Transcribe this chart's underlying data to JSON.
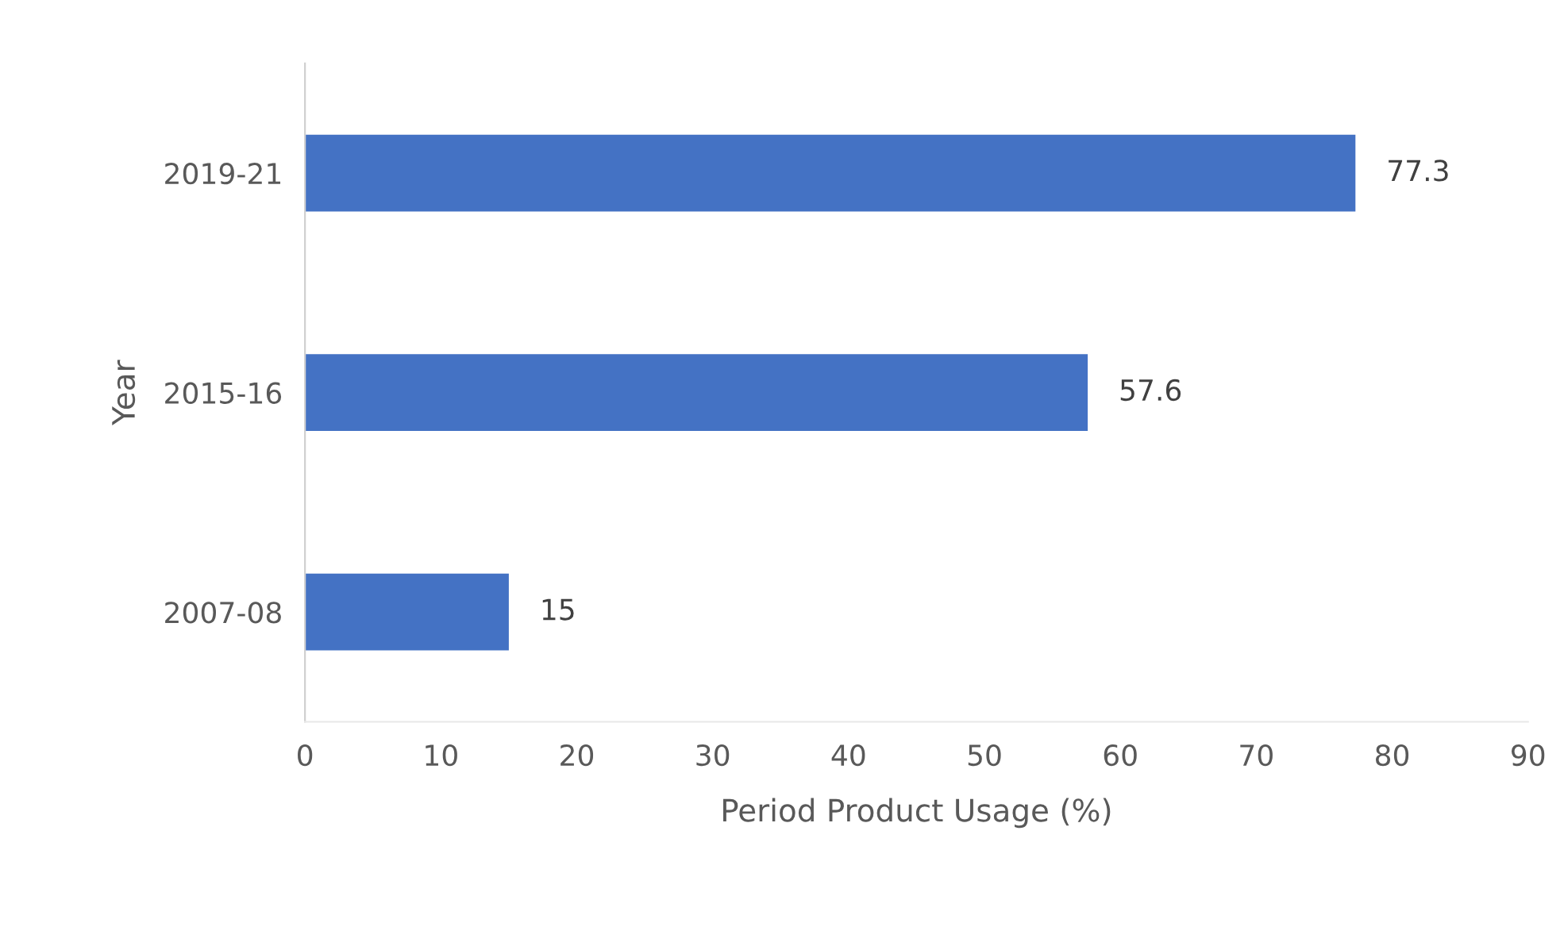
{
  "chart_data": {
    "type": "bar",
    "orientation": "horizontal",
    "xlabel": "Period Product Usage (%)",
    "ylabel": "Year",
    "categories": [
      "2019-21",
      "2015-16",
      "2007-08"
    ],
    "values": [
      77.3,
      57.6,
      15
    ],
    "color": "#4472c4",
    "xlim": [
      0,
      90
    ],
    "xticks": [
      0,
      10,
      20,
      30,
      40,
      50,
      60,
      70,
      80,
      90
    ],
    "grid": false,
    "data_labels": true
  }
}
